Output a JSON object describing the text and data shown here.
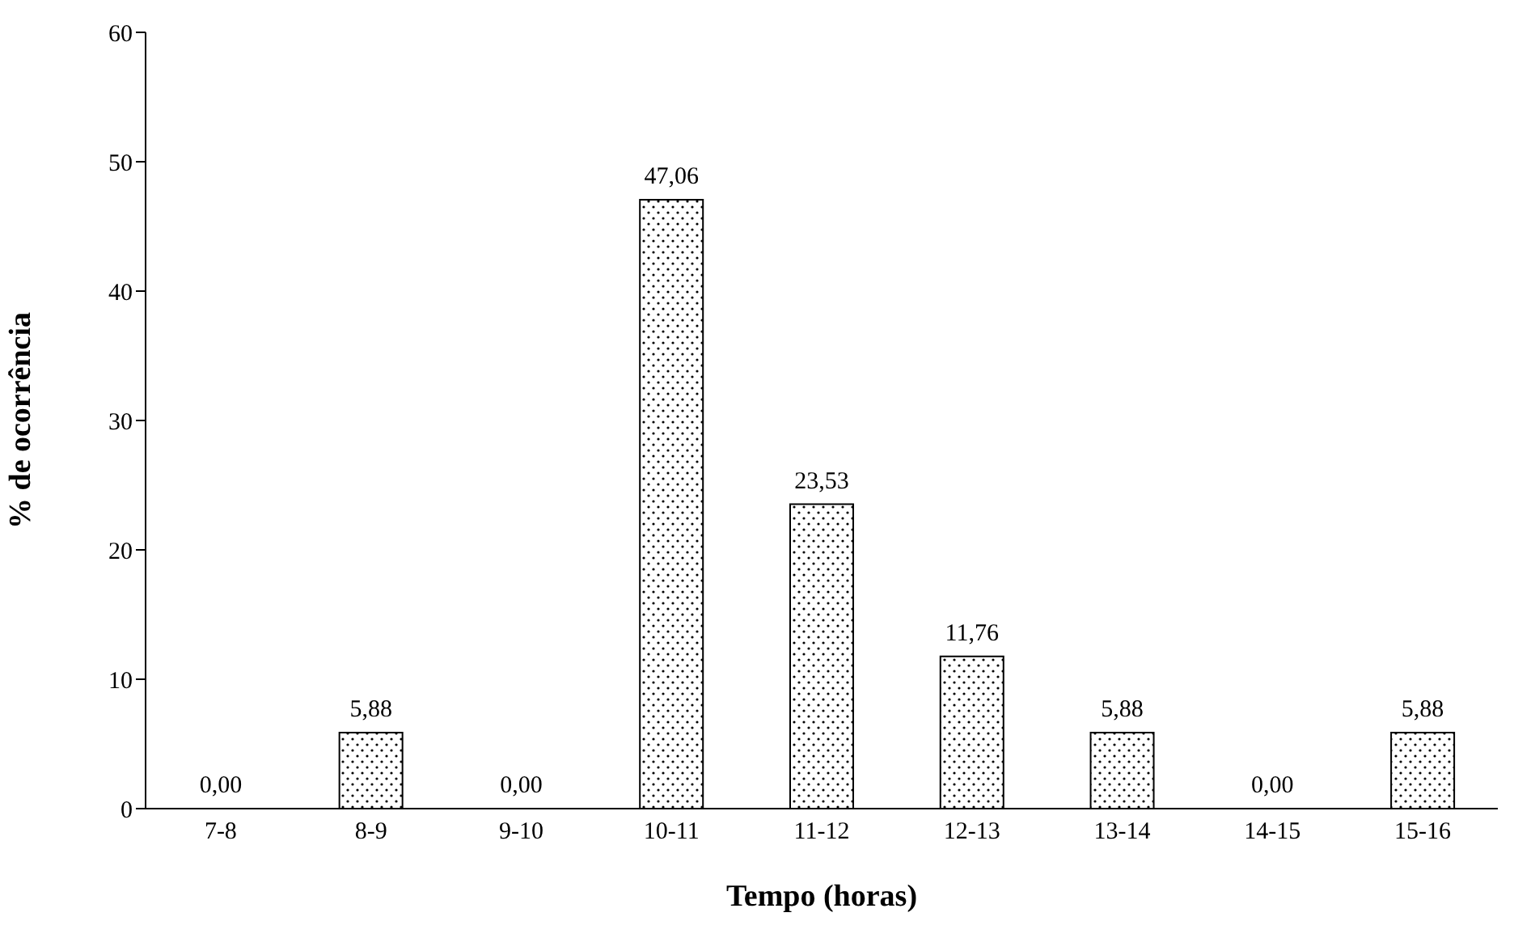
{
  "chart_data": {
    "type": "bar",
    "xlabel": "Tempo (horas)",
    "ylabel": "% de ocorrência",
    "categories": [
      "7-8",
      "8-9",
      "9-10",
      "10-11",
      "11-12",
      "12-13",
      "13-14",
      "14-15",
      "15-16"
    ],
    "values": [
      0,
      5.88,
      0,
      47.06,
      23.53,
      11.76,
      5.88,
      0,
      5.88
    ],
    "value_labels": [
      "0,00",
      "5,88",
      "0,00",
      "47,06",
      "23,53",
      "11,76",
      "5,88",
      "0,00",
      "5,88"
    ],
    "color": "#000000",
    "ylim": [
      0,
      60
    ],
    "yticks": [
      0,
      10,
      20,
      30,
      40,
      50,
      60
    ],
    "grid": false
  }
}
